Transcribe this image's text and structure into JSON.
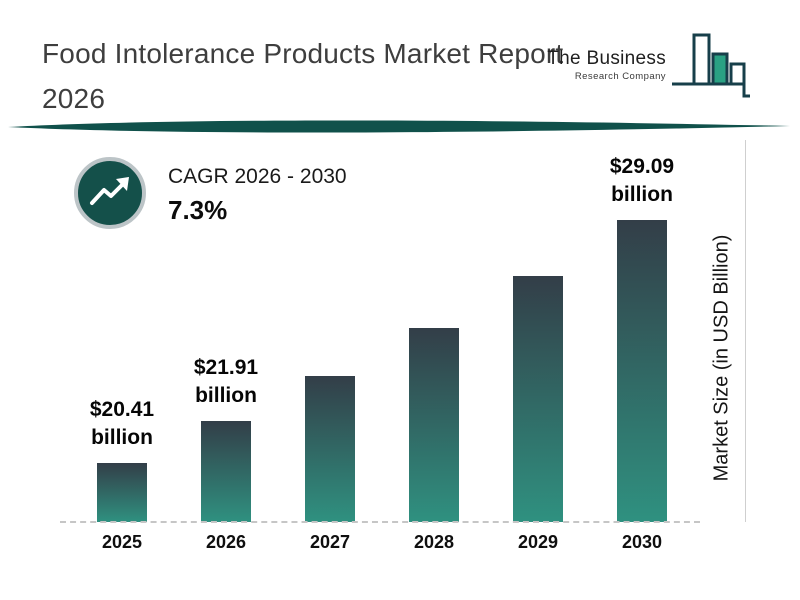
{
  "page": {
    "title": "Food Intolerance Products Market Report 2026"
  },
  "logo": {
    "line1": "The Business",
    "line2": "Research Company"
  },
  "cagr": {
    "label": "CAGR 2026 - 2030",
    "value": "7.3%"
  },
  "chart_data": {
    "type": "bar",
    "title": "Food Intolerance Products Market Report 2026",
    "categories": [
      "2025",
      "2026",
      "2027",
      "2028",
      "2029",
      "2030"
    ],
    "values": [
      20.41,
      21.91,
      23.51,
      25.23,
      27.07,
      29.09
    ],
    "value_labels": [
      {
        "index": 0,
        "line1": "$20.41",
        "line2": "billion"
      },
      {
        "index": 1,
        "line1": "$21.91",
        "line2": "billion"
      },
      {
        "index": 5,
        "line1": "$29.09",
        "line2": "billion"
      }
    ],
    "xlabel": "",
    "ylabel": "Market Size (in USD Billion)",
    "ylim": [
      18.3,
      30
    ],
    "grid": false,
    "legend_position": "none"
  },
  "icons": {
    "growth_arrow_icon": "zigzag-trending-up-arrow",
    "logo_bars_icon": "outlined-bar-chart"
  },
  "colors": {
    "divider": "#10514b",
    "cagr_circle": "#14504a",
    "cagr_ring": "#bcc4c7",
    "accent_teal": "#2aa183",
    "logo_dark": "#173f4a",
    "bar_gradient_top": "#333e48",
    "bar_gradient_bottom": "#2f9180"
  }
}
